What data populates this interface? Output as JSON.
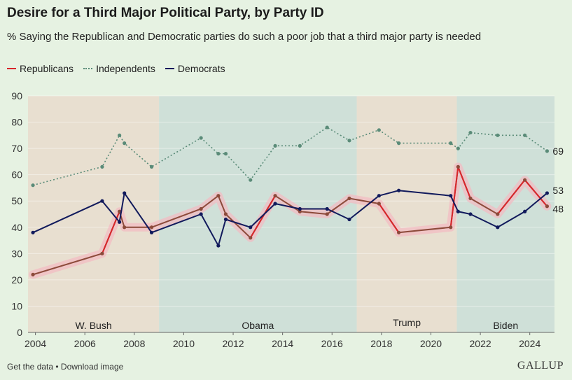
{
  "header": {
    "title": "Desire for a Third Major Political Party, by Party ID",
    "subtitle": "% Saying the Republican and Democratic parties do such a poor job that a third major party is needed"
  },
  "legend": [
    {
      "name": "Republicans",
      "color": "#d9262b",
      "style": "solid"
    },
    {
      "name": "Independents",
      "color": "#5a8b78",
      "style": "dotted"
    },
    {
      "name": "Democrats",
      "color": "#111a5c",
      "style": "solid"
    }
  ],
  "footer": {
    "get_data": "Get the data",
    "separator": " • ",
    "download": "Download image",
    "brand": "GALLUP"
  },
  "chart_data": {
    "type": "line",
    "title": "Desire for a Third Major Political Party, by Party ID",
    "xlabel": "",
    "ylabel": "",
    "xlim": [
      2003.7,
      2025.0
    ],
    "ylim": [
      0,
      90
    ],
    "xticks": [
      2004,
      2006,
      2008,
      2010,
      2012,
      2014,
      2016,
      2018,
      2020,
      2022,
      2024
    ],
    "yticks": [
      0,
      10,
      20,
      30,
      40,
      50,
      60,
      70,
      80,
      90
    ],
    "grid": true,
    "eras": [
      {
        "label": "W. Bush",
        "start": 2003.7,
        "end": 2009.0,
        "color": "#e8dfd0"
      },
      {
        "label": "Obama",
        "start": 2009.0,
        "end": 2017.0,
        "color": "#cfe0d8"
      },
      {
        "label": "Trump",
        "start": 2017.0,
        "end": 2021.05,
        "color": "#e8dfd0"
      },
      {
        "label": "Biden",
        "start": 2021.05,
        "end": 2025.0,
        "color": "#cfe0d8"
      }
    ],
    "series": [
      {
        "name": "Republicans",
        "color": "#d9262b",
        "overlap_color": "#8c4a3a",
        "x": [
          2003.9,
          2006.7,
          2007.4,
          2007.6,
          2008.7,
          2010.7,
          2011.4,
          2011.7,
          2012.7,
          2013.7,
          2014.7,
          2015.8,
          2016.7,
          2017.9,
          2018.7,
          2020.8,
          2021.1,
          2021.6,
          2022.7,
          2023.8,
          2024.7
        ],
        "values": [
          22,
          30,
          46,
          40,
          40,
          47,
          52,
          45,
          36,
          52,
          46,
          45,
          51,
          49,
          38,
          40,
          63,
          51,
          45,
          58,
          48
        ]
      },
      {
        "name": "Independents",
        "color": "#5a8b78",
        "x": [
          2003.9,
          2006.7,
          2007.4,
          2007.6,
          2008.7,
          2010.7,
          2011.4,
          2011.7,
          2012.7,
          2013.7,
          2014.7,
          2015.8,
          2016.7,
          2017.9,
          2018.7,
          2020.8,
          2021.1,
          2021.6,
          2022.7,
          2023.8,
          2024.7
        ],
        "values": [
          56,
          63,
          75,
          72,
          63,
          74,
          68,
          68,
          58,
          71,
          71,
          78,
          73,
          77,
          72,
          72,
          70,
          76,
          75,
          75,
          69
        ]
      },
      {
        "name": "Democrats",
        "color": "#111a5c",
        "x": [
          2003.9,
          2006.7,
          2007.4,
          2007.6,
          2008.7,
          2010.7,
          2011.4,
          2011.7,
          2012.7,
          2013.7,
          2014.7,
          2015.8,
          2016.7,
          2017.9,
          2018.7,
          2020.8,
          2021.1,
          2021.6,
          2022.7,
          2023.8,
          2024.7
        ],
        "values": [
          38,
          50,
          42,
          53,
          38,
          45,
          33,
          43,
          40,
          49,
          47,
          47,
          43,
          52,
          54,
          52,
          46,
          45,
          40,
          46,
          53
        ]
      }
    ],
    "end_labels": [
      {
        "series": "Independents",
        "text": "69"
      },
      {
        "series": "Democrats",
        "text": "53"
      },
      {
        "series": "Republicans",
        "text": "48"
      }
    ]
  }
}
